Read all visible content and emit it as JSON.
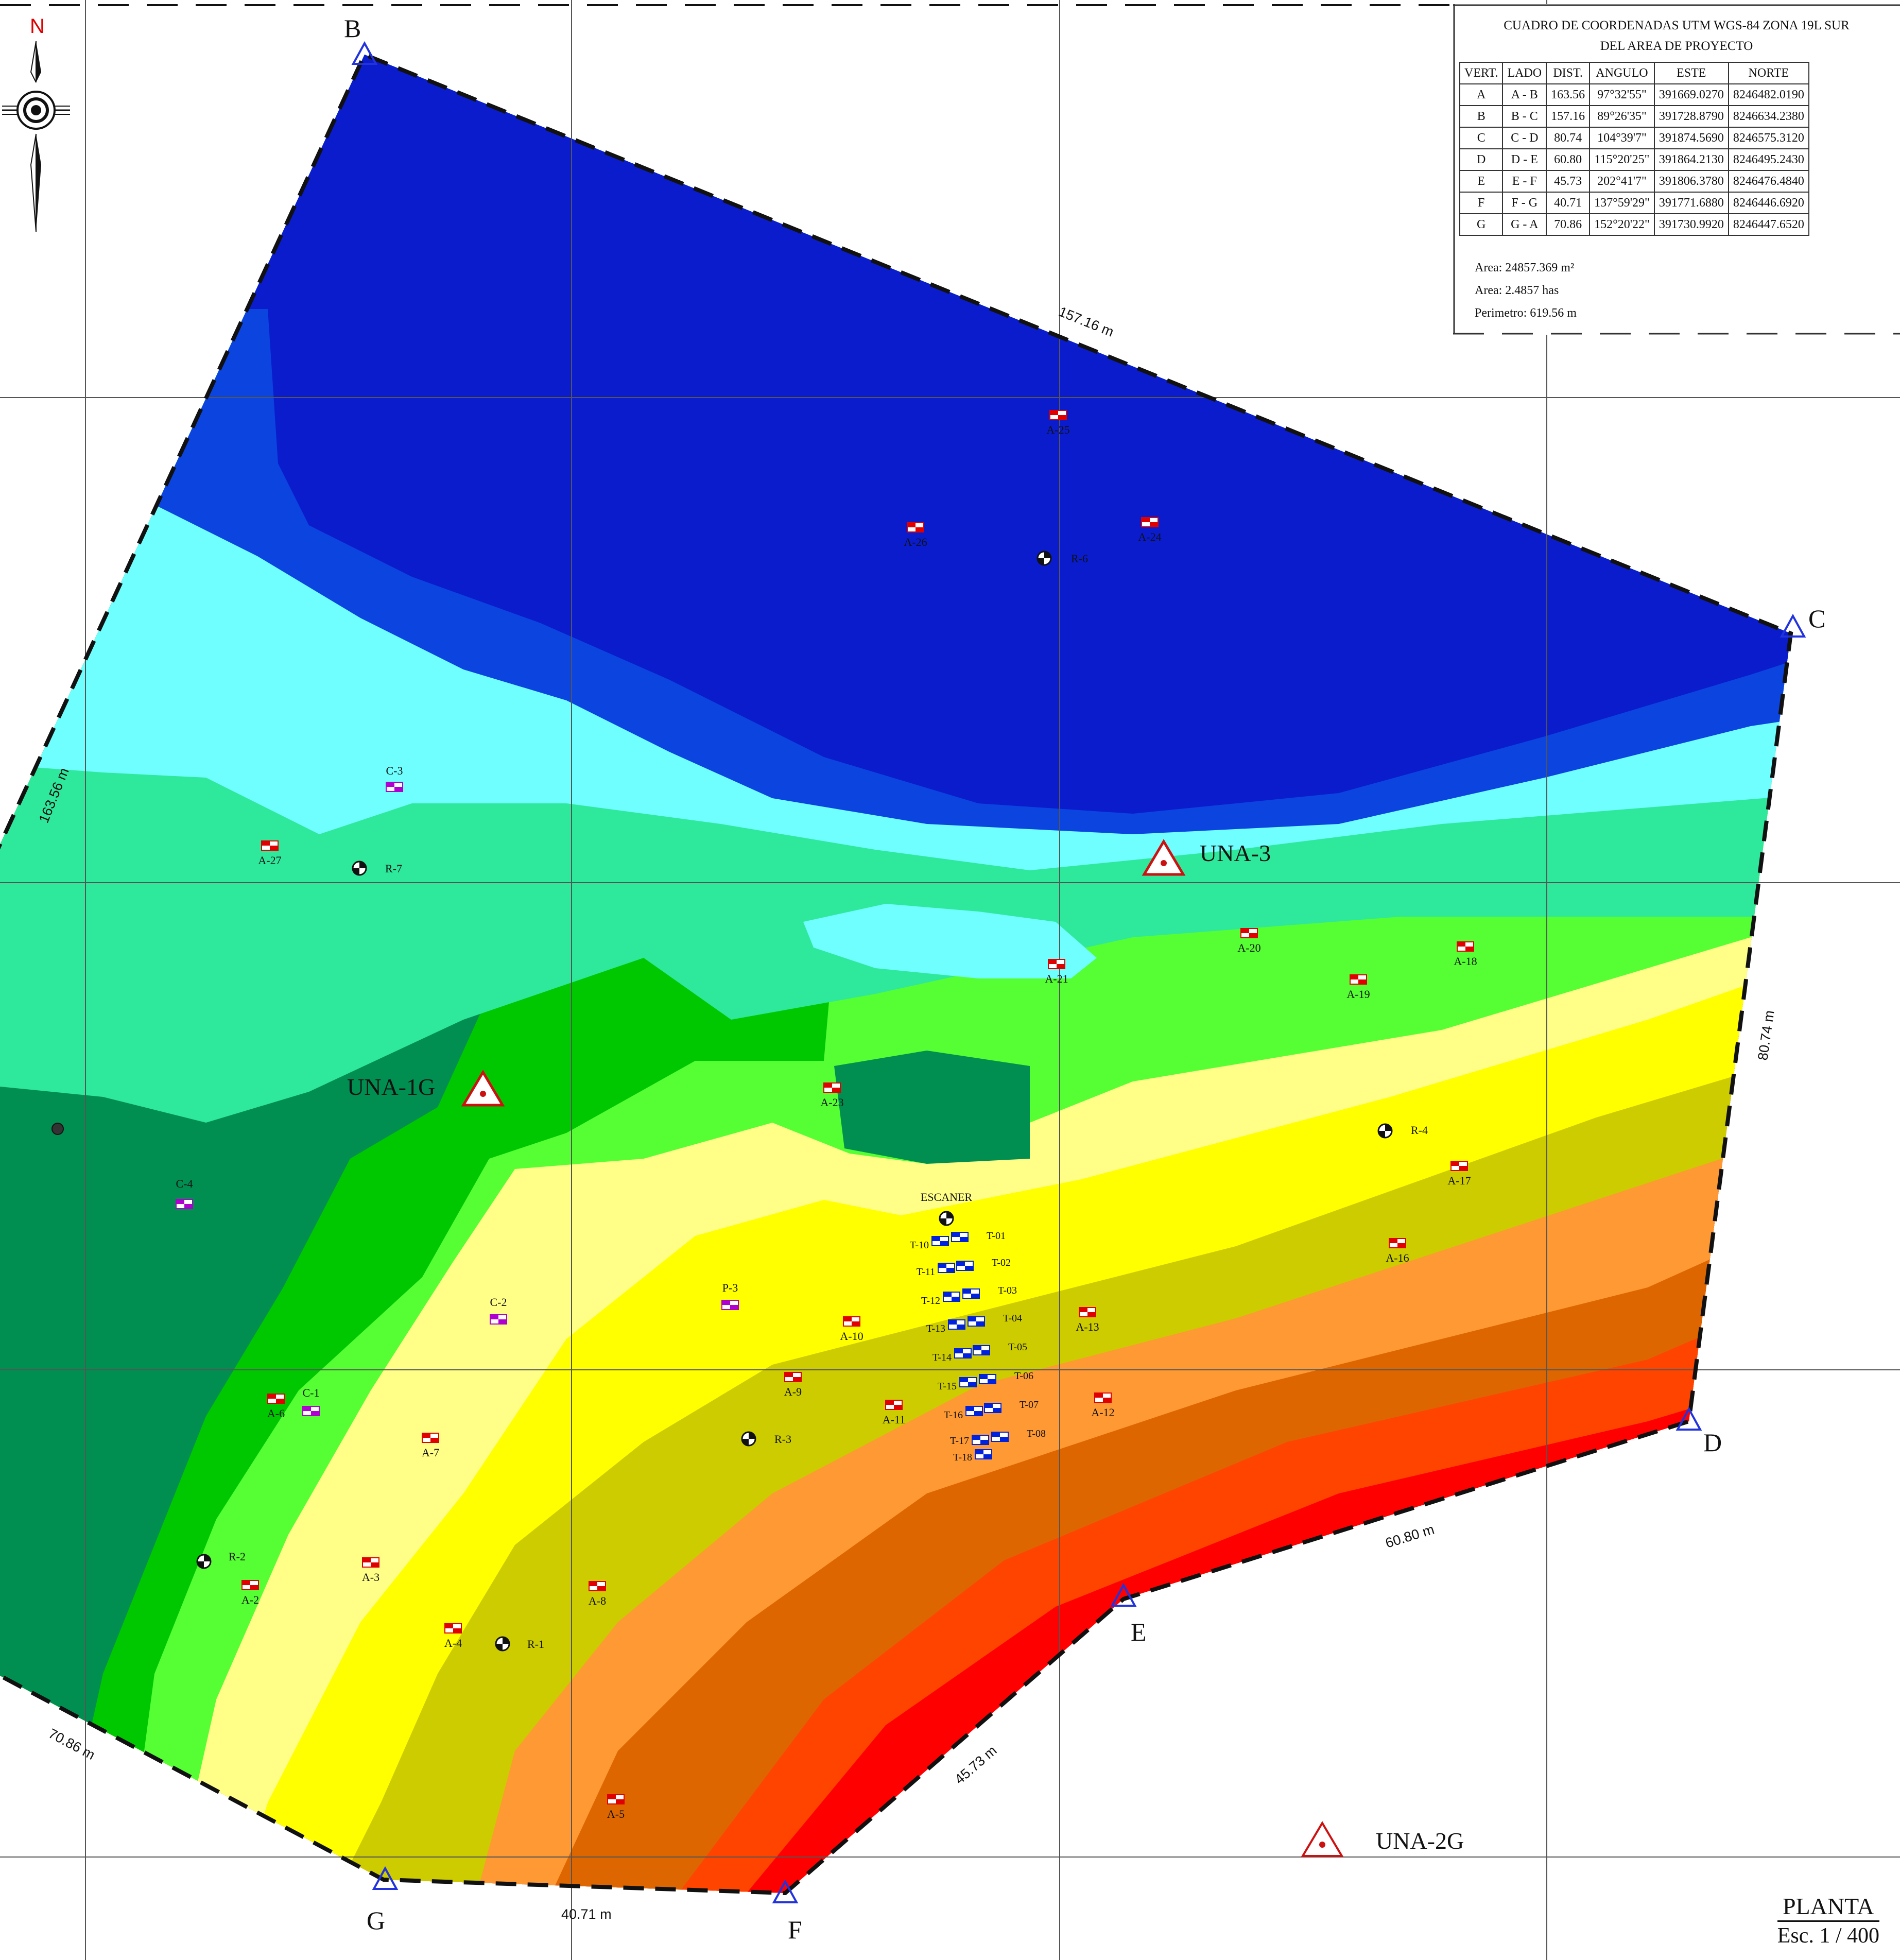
{
  "north_arrow": {
    "label": "N",
    "icon": "north-arrow-icon"
  },
  "vertices": [
    {
      "name": "A",
      "shown": false
    },
    {
      "name": "B"
    },
    {
      "name": "C"
    },
    {
      "name": "D"
    },
    {
      "name": "E"
    },
    {
      "name": "F"
    },
    {
      "name": "G"
    }
  ],
  "vertex_labels": {
    "B": "B",
    "C": "C",
    "D": "D",
    "E": "E",
    "F": "F",
    "G": "G"
  },
  "side_lengths": {
    "ab": "163.56 m",
    "bc": "157.16 m",
    "cd": "80.74 m",
    "de": "60.80 m",
    "ef": "45.73 m",
    "fg": "40.71 m",
    "ga": "70.86 m"
  },
  "benchmarks": {
    "una_1g": "UNA-1G",
    "una_3": "UNA-3",
    "una_2g": "UNA-2G"
  },
  "contour_colors": [
    "#0a1ccc",
    "#0c44e0",
    "#70ffff",
    "#2ee89c",
    "#008f50",
    "#00c800",
    "#55ff33",
    "#ffff88",
    "#ffff00",
    "#cccc00",
    "#ff9933",
    "#dd6600",
    "#ff4400",
    "#ff0000",
    "#aa0000"
  ],
  "points": {
    "A-2": "A-2",
    "A-3": "A-3",
    "A-4": "A-4",
    "A-5": "A-5",
    "A-6": "A-6",
    "A-7": "A-7",
    "A-8": "A-8",
    "A-9": "A-9",
    "A-10": "A-10",
    "A-11": "A-11",
    "A-12": "A-12",
    "A-13": "A-13",
    "A-16": "A-16",
    "A-17": "A-17",
    "A-18": "A-18",
    "A-19": "A-19",
    "A-20": "A-20",
    "A-21": "A-21",
    "A-23": "A-23",
    "A-24": "A-24",
    "A-25": "A-25",
    "A-26": "A-26",
    "A-27": "A-27",
    "C-1": "C-1",
    "C-2": "C-2",
    "C-3": "C-3",
    "C-4": "C-4",
    "P-3": "P-3",
    "R-1": "R-1",
    "R-2": "R-2",
    "R-3": "R-3",
    "R-4": "R-4",
    "R-6": "R-6",
    "R-7": "R-7",
    "ESCANER": "ESCANER",
    "T-01": "T-01",
    "T-02": "T-02",
    "T-03": "T-03",
    "T-04": "T-04",
    "T-05": "T-05",
    "T-06": "T-06",
    "T-07": "T-07",
    "T-08": "T-08",
    "T-10": "T-10",
    "T-11": "T-11",
    "T-12": "T-12",
    "T-13": "T-13",
    "T-14": "T-14",
    "T-15": "T-15",
    "T-16": "T-16",
    "T-17": "T-17",
    "T-18": "T-18"
  },
  "coordinate_table": {
    "title_line1": "CUADRO DE COORDENADAS UTM WGS-84 ZONA 19L SUR",
    "title_line2": "DEL AREA DE PROYECTO",
    "headers": [
      "VERT.",
      "LADO",
      "DIST.",
      "ANGULO",
      "ESTE",
      "NORTE"
    ],
    "rows": [
      [
        "A",
        "A - B",
        "163.56",
        "97°32'55\"",
        "391669.0270",
        "8246482.0190"
      ],
      [
        "B",
        "B - C",
        "157.16",
        "89°26'35\"",
        "391728.8790",
        "8246634.2380"
      ],
      [
        "C",
        "C - D",
        "80.74",
        "104°39'7\"",
        "391874.5690",
        "8246575.3120"
      ],
      [
        "D",
        "D - E",
        "60.80",
        "115°20'25\"",
        "391864.2130",
        "8246495.2430"
      ],
      [
        "E",
        "E - F",
        "45.73",
        "202°41'7\"",
        "391806.3780",
        "8246476.4840"
      ],
      [
        "F",
        "F - G",
        "40.71",
        "137°59'29\"",
        "391771.6880",
        "8246446.6920"
      ],
      [
        "G",
        "G - A",
        "70.86",
        "152°20'22\"",
        "391730.9920",
        "8246447.6520"
      ]
    ],
    "area_m2": "Area: 24857.369 m²",
    "area_has": "Area: 2.4857 has",
    "perimeter": "Perimetro: 619.56 m"
  },
  "plan": {
    "title": "PLANTA",
    "scale": "Esc. 1 / 400"
  }
}
